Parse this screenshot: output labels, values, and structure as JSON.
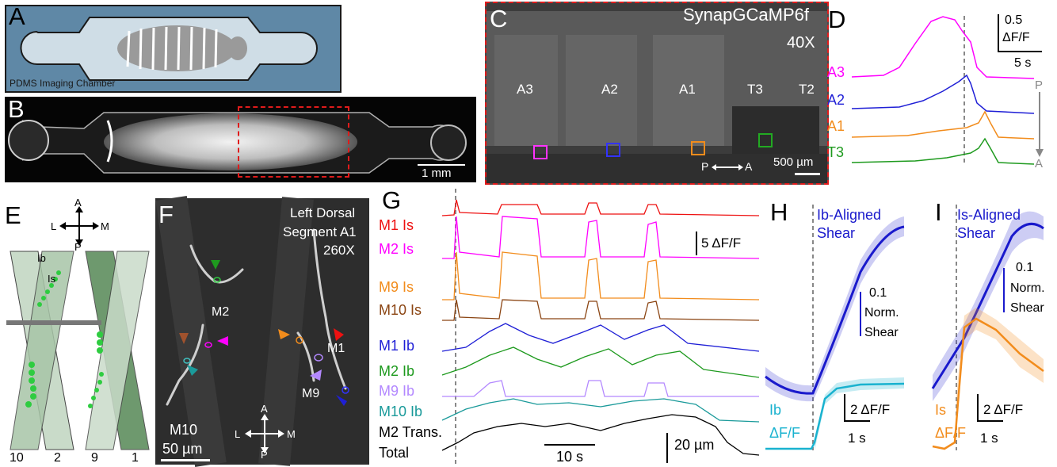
{
  "panels": {
    "A": {
      "label": "A",
      "caption": "PDMS Imaging Chamber"
    },
    "B": {
      "label": "B",
      "scalebar": "1 mm"
    },
    "C": {
      "label": "C",
      "indicator": "SynapGCaMP6f",
      "magnification": "40X",
      "segments": [
        "A3",
        "A2",
        "A1",
        "T3",
        "T2"
      ],
      "axis_p": "P",
      "axis_a": "A",
      "scalebar": "500 µm"
    },
    "D": {
      "label": "D",
      "scale_y": "0.5",
      "scale_y_unit": "ΔF/F",
      "scale_x": "5 s",
      "traces": [
        {
          "name": "A3",
          "color": "#ff00ff"
        },
        {
          "name": "A2",
          "color": "#1f1fd6"
        },
        {
          "name": "A1",
          "color": "#f28c1c"
        },
        {
          "name": "T3",
          "color": "#1e9a1e"
        }
      ],
      "axis_p": "P",
      "axis_a": "A"
    },
    "E": {
      "label": "E",
      "compass": {
        "a": "A",
        "p": "P",
        "l": "L",
        "m": "M"
      },
      "ib": "Ib",
      "is": "Is",
      "muscles": [
        "10",
        "2",
        "9",
        "1"
      ]
    },
    "F": {
      "label": "F",
      "title_line1": "Left Dorsal",
      "title_line2": "Segment A1",
      "magnification": "260X",
      "muscles": [
        "M2",
        "M1",
        "M9",
        "M10"
      ],
      "scalebar": "50 µm",
      "compass": {
        "a": "A",
        "p": "P",
        "l": "L",
        "m": "M"
      }
    },
    "G": {
      "label": "G",
      "scale_y": "5 ΔF/F",
      "scale_x": "10 s",
      "scale_disp": "20 µm",
      "traces": [
        {
          "name": "M1 Is",
          "color": "#ee1111"
        },
        {
          "name": "M2 Is",
          "color": "#ff00ff"
        },
        {
          "name": "M9 Is",
          "color": "#f28c1c"
        },
        {
          "name": "M10 Is",
          "color": "#8b4513"
        },
        {
          "name": "M1 Ib",
          "color": "#1f1fd6"
        },
        {
          "name": "M2 Ib",
          "color": "#1e9a1e"
        },
        {
          "name": "M9 Ib",
          "color": "#b388ff"
        },
        {
          "name": "M10 Ib",
          "color": "#1a9a9a"
        },
        {
          "name": "M2 Trans.",
          "color": "#000000"
        },
        {
          "name": "Total",
          "color": "#000000"
        }
      ]
    },
    "H": {
      "label": "H",
      "title_line1": "Ib-Aligned",
      "title_line2": "Shear",
      "scale_shear_value": "0.1",
      "scale_shear_l1": "Norm.",
      "scale_shear_l2": "Shear",
      "trace_line1": "Ib",
      "trace_line2": "ΔF/F",
      "scale_y": "2 ΔF/F",
      "scale_x": "1 s",
      "shear_color": "#1a1acc",
      "trace_color": "#19b2cf"
    },
    "I": {
      "label": "I",
      "title_line1": "Is-Aligned",
      "title_line2": "Shear",
      "scale_shear_value": "0.1",
      "scale_shear_l1": "Norm.",
      "scale_shear_l2": "Shear",
      "trace_line1": "Is",
      "trace_line2": "ΔF/F",
      "scale_y": "2 ΔF/F",
      "scale_x": "1 s",
      "shear_color": "#1a1acc",
      "trace_color": "#f28c1c"
    }
  }
}
